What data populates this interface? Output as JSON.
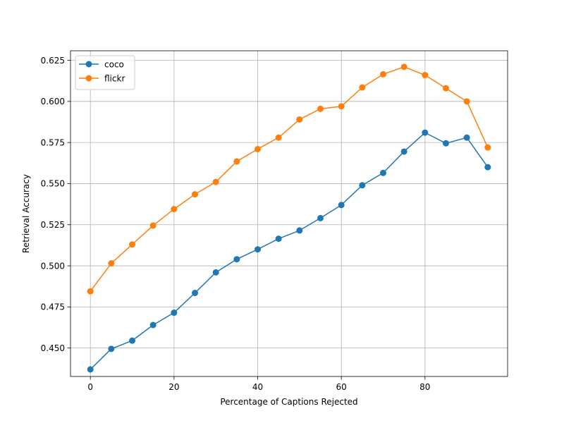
{
  "chart_data": {
    "type": "line",
    "title": "",
    "xlabel": "Percentage of Captions Rejected",
    "ylabel": "Retrieval Accuracy",
    "xlim": [
      -4.75,
      99.75
    ],
    "ylim": [
      0.4327,
      0.6308
    ],
    "xticks": [
      0,
      20,
      40,
      60,
      80
    ],
    "yticks": [
      0.45,
      0.475,
      0.5,
      0.525,
      0.55,
      0.575,
      0.6,
      0.625
    ],
    "grid": true,
    "legend": "top-left",
    "x": [
      0,
      5,
      10,
      15,
      20,
      25,
      30,
      35,
      40,
      45,
      50,
      55,
      60,
      65,
      70,
      75,
      80,
      85,
      90,
      95
    ],
    "series": [
      {
        "name": "coco",
        "color": "#1f77b4",
        "values": [
          0.437,
          0.4495,
          0.4545,
          0.464,
          0.4715,
          0.4835,
          0.496,
          0.504,
          0.51,
          0.5165,
          0.5215,
          0.529,
          0.537,
          0.549,
          0.5565,
          0.5695,
          0.581,
          0.5745,
          0.578,
          0.56
        ]
      },
      {
        "name": "flickr",
        "color": "#ff7f0e",
        "values": [
          0.4845,
          0.5015,
          0.513,
          0.5245,
          0.5345,
          0.5435,
          0.551,
          0.5635,
          0.571,
          0.578,
          0.589,
          0.5955,
          0.597,
          0.6085,
          0.6165,
          0.621,
          0.616,
          0.608,
          0.6,
          0.572
        ]
      }
    ]
  }
}
